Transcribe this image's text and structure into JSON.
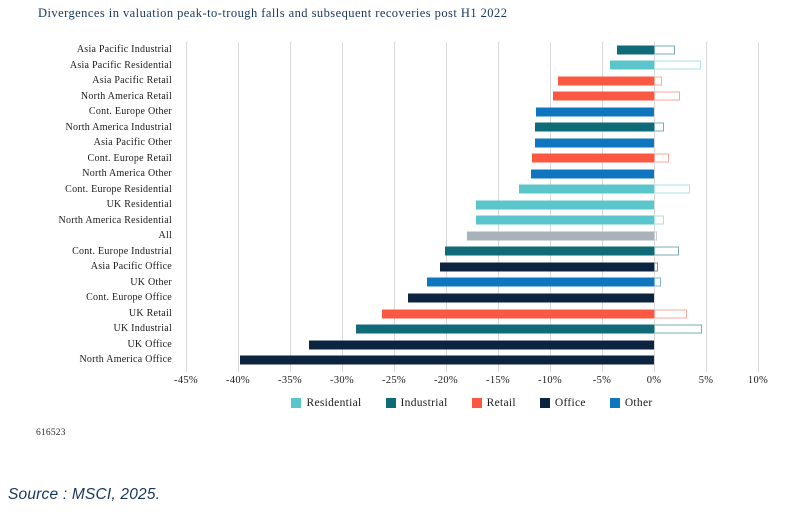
{
  "page": {
    "figure_number": "616523",
    "source": "Source : MSCI, 2025."
  },
  "chart_data": {
    "type": "bar",
    "orientation": "horizontal",
    "title": "Divergences in valuation peak-to-trough falls and subsequent recoveries post H1 2022",
    "xlabel": "",
    "ylabel": "",
    "x_unit": "%",
    "xlim": [
      -45,
      10
    ],
    "x_tick_values": [
      -45,
      -40,
      -35,
      -30,
      -25,
      -20,
      -15,
      -10,
      -5,
      0,
      5,
      10
    ],
    "grid": true,
    "legend_position": "bottom",
    "bar_style": "solid bar = peak-to-trough fall (negative), hollow outlined bar = subsequent recovery (positive)",
    "colors": {
      "residential": "#5BC5CC",
      "industrial": "#106B79",
      "retail": "#FA5843",
      "office": "#0D2440",
      "other": "#0E76BE",
      "all": "#A9B1BB"
    },
    "hollow_border_colors": {
      "residential": "#ADE2E6",
      "industrial": "#79AEB6",
      "retail": "#FCA79C",
      "office": "#8796A8",
      "other": "#7FB6DF",
      "all": "#C9CED6"
    },
    "legend": [
      {
        "key": "residential",
        "label": "Residential"
      },
      {
        "key": "industrial",
        "label": "Industrial"
      },
      {
        "key": "retail",
        "label": "Retail"
      },
      {
        "key": "office",
        "label": "Office"
      },
      {
        "key": "other",
        "label": "Other"
      }
    ],
    "rows": [
      {
        "label": "Asia Pacific Industrial",
        "series": "industrial",
        "fall_pct": -3.6,
        "recovery_pct": 2.0
      },
      {
        "label": "Asia Pacific Residential",
        "series": "residential",
        "fall_pct": -4.2,
        "recovery_pct": 4.5
      },
      {
        "label": "Asia Pacific Retail",
        "series": "retail",
        "fall_pct": -9.2,
        "recovery_pct": 0.8
      },
      {
        "label": "North America Retail",
        "series": "retail",
        "fall_pct": -9.7,
        "recovery_pct": 2.5
      },
      {
        "label": "Cont. Europe Other",
        "series": "other",
        "fall_pct": -11.3,
        "recovery_pct": 0
      },
      {
        "label": "North America Industrial",
        "series": "industrial",
        "fall_pct": -11.4,
        "recovery_pct": 1.0
      },
      {
        "label": "Asia Pacific Other",
        "series": "other",
        "fall_pct": -11.4,
        "recovery_pct": 0
      },
      {
        "label": "Cont. Europe Retail",
        "series": "retail",
        "fall_pct": -11.7,
        "recovery_pct": 1.4
      },
      {
        "label": "North America Other",
        "series": "other",
        "fall_pct": -11.8,
        "recovery_pct": 0
      },
      {
        "label": "Cont. Europe Residential",
        "series": "residential",
        "fall_pct": -13.0,
        "recovery_pct": 3.5
      },
      {
        "label": "UK Residential",
        "series": "residential",
        "fall_pct": -17.1,
        "recovery_pct": 0
      },
      {
        "label": "North America Residential",
        "series": "residential",
        "fall_pct": -17.1,
        "recovery_pct": 1.0
      },
      {
        "label": "All",
        "series": "all",
        "fall_pct": -18.0,
        "recovery_pct": 0.3
      },
      {
        "label": "Cont. Europe Industrial",
        "series": "industrial",
        "fall_pct": -20.1,
        "recovery_pct": 2.4
      },
      {
        "label": "Asia Pacific Office",
        "series": "office",
        "fall_pct": -20.6,
        "recovery_pct": 0.4
      },
      {
        "label": "UK Other",
        "series": "other",
        "fall_pct": -21.8,
        "recovery_pct": 0.7
      },
      {
        "label": "Cont. Europe Office",
        "series": "office",
        "fall_pct": -23.7,
        "recovery_pct": 0
      },
      {
        "label": "UK Retail",
        "series": "retail",
        "fall_pct": -26.2,
        "recovery_pct": 3.2
      },
      {
        "label": "UK Industrial",
        "series": "industrial",
        "fall_pct": -28.7,
        "recovery_pct": 4.6
      },
      {
        "label": "UK Office",
        "series": "office",
        "fall_pct": -33.2,
        "recovery_pct": 0
      },
      {
        "label": "North America Office",
        "series": "office",
        "fall_pct": -39.8,
        "recovery_pct": 0
      }
    ]
  }
}
